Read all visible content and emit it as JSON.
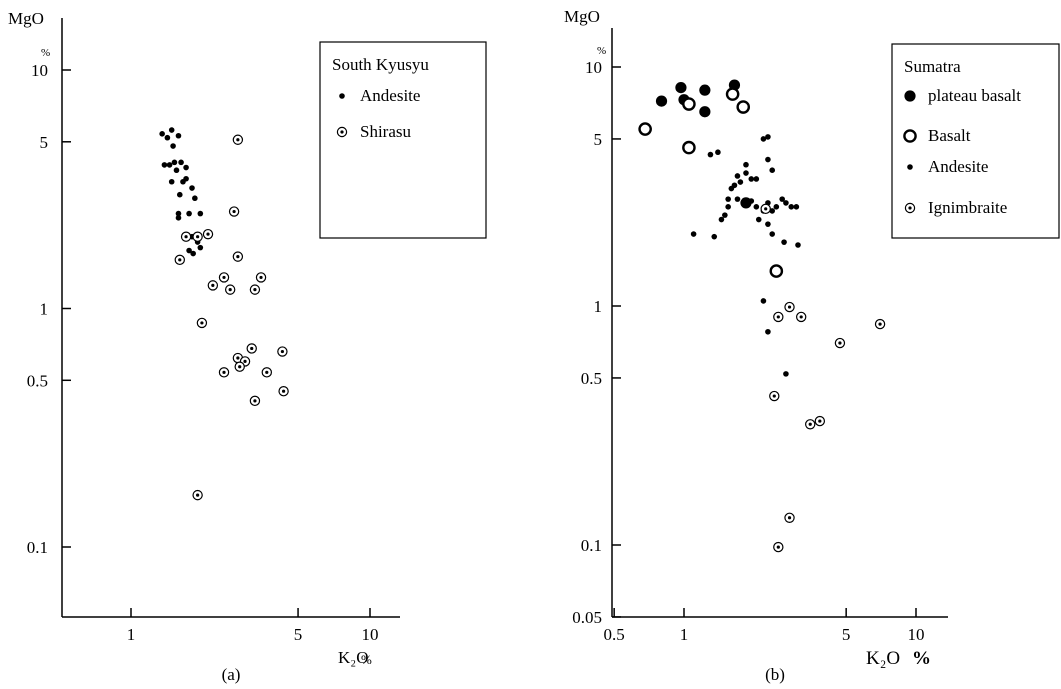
{
  "chart_data": [
    {
      "type": "scatter",
      "panel_label": "(a)",
      "y_axis_label": "MgO",
      "y_unit_label": "%",
      "x_axis_label": "K₂O",
      "x_unit_label": "%",
      "x_scale": "log",
      "y_scale": "log",
      "xlim": [
        0.5,
        15
      ],
      "ylim": [
        0.05,
        20
      ],
      "x_ticks": [
        {
          "v": 1,
          "label": "1"
        },
        {
          "v": 5,
          "label": "5"
        },
        {
          "v": 10,
          "label": "10"
        }
      ],
      "y_ticks": [
        {
          "v": 0.1,
          "label": "0.1"
        },
        {
          "v": 0.5,
          "label": "0.5"
        },
        {
          "v": 1,
          "label": "1"
        },
        {
          "v": 5,
          "label": "5"
        },
        {
          "v": 10,
          "label": "10"
        }
      ],
      "grid": false,
      "legend_position": "top-right",
      "legend_title": "South Kyusyu",
      "series": [
        {
          "name": "Andesite",
          "marker": "small-dot",
          "points": [
            [
              1.35,
              5.4
            ],
            [
              1.42,
              5.2
            ],
            [
              1.48,
              5.6
            ],
            [
              1.58,
              5.3
            ],
            [
              1.5,
              4.8
            ],
            [
              1.38,
              4.0
            ],
            [
              1.45,
              4.0
            ],
            [
              1.52,
              4.1
            ],
            [
              1.55,
              3.8
            ],
            [
              1.62,
              4.1
            ],
            [
              1.7,
              3.9
            ],
            [
              1.48,
              3.4
            ],
            [
              1.65,
              3.4
            ],
            [
              1.7,
              3.5
            ],
            [
              1.8,
              3.2
            ],
            [
              1.6,
              3.0
            ],
            [
              1.85,
              2.9
            ],
            [
              1.58,
              2.5
            ],
            [
              1.75,
              2.5
            ],
            [
              1.95,
              2.5
            ],
            [
              1.58,
              2.4
            ],
            [
              1.8,
              2.0
            ],
            [
              1.9,
              1.9
            ],
            [
              1.75,
              1.75
            ],
            [
              1.82,
              1.7
            ],
            [
              1.95,
              1.8
            ]
          ]
        },
        {
          "name": "Shirasu",
          "marker": "dotted-circle",
          "points": [
            [
              2.8,
              5.1
            ],
            [
              2.7,
              2.55
            ],
            [
              1.7,
              2.0
            ],
            [
              1.9,
              2.0
            ],
            [
              2.1,
              2.05
            ],
            [
              1.6,
              1.6
            ],
            [
              2.8,
              1.65
            ],
            [
              2.45,
              1.35
            ],
            [
              3.5,
              1.35
            ],
            [
              2.2,
              1.25
            ],
            [
              2.6,
              1.2
            ],
            [
              3.3,
              1.2
            ],
            [
              1.98,
              0.87
            ],
            [
              3.2,
              0.68
            ],
            [
              4.3,
              0.66
            ],
            [
              2.8,
              0.62
            ],
            [
              3.0,
              0.6
            ],
            [
              2.85,
              0.57
            ],
            [
              2.45,
              0.54
            ],
            [
              3.7,
              0.54
            ],
            [
              4.35,
              0.45
            ],
            [
              3.3,
              0.41
            ],
            [
              1.9,
              0.165
            ]
          ]
        }
      ]
    },
    {
      "type": "scatter",
      "panel_label": "(b)",
      "y_axis_label": "MgO",
      "y_unit_label": "%",
      "x_axis_label": "K₂O",
      "x_unit_label": "%",
      "x_scale": "log",
      "y_scale": "log",
      "xlim": [
        0.5,
        14
      ],
      "ylim": [
        0.05,
        16
      ],
      "x_ticks": [
        {
          "v": 0.5,
          "label": "0.5"
        },
        {
          "v": 1,
          "label": "1"
        },
        {
          "v": 5,
          "label": "5"
        },
        {
          "v": 10,
          "label": "10"
        }
      ],
      "y_ticks": [
        {
          "v": 0.05,
          "label": "0.05"
        },
        {
          "v": 0.1,
          "label": "0.1"
        },
        {
          "v": 0.5,
          "label": "0.5"
        },
        {
          "v": 1,
          "label": "1"
        },
        {
          "v": 5,
          "label": "5"
        },
        {
          "v": 10,
          "label": "10"
        }
      ],
      "grid": false,
      "legend_position": "top-right",
      "legend_title": "Sumatra",
      "series": [
        {
          "name": "plateau basalt",
          "marker": "large-filled-circle",
          "points": [
            [
              0.8,
              7.2
            ],
            [
              0.97,
              8.2
            ],
            [
              1.0,
              7.3
            ],
            [
              1.23,
              8.0
            ],
            [
              1.23,
              6.5
            ],
            [
              1.65,
              8.4
            ],
            [
              1.85,
              2.7
            ]
          ]
        },
        {
          "name": "Basalt",
          "marker": "large-open-circle",
          "points": [
            [
              0.68,
              5.5
            ],
            [
              1.05,
              7.0
            ],
            [
              1.05,
              4.6
            ],
            [
              1.62,
              7.7
            ],
            [
              1.8,
              6.8
            ],
            [
              2.5,
              1.4
            ]
          ]
        },
        {
          "name": "Andesite",
          "marker": "small-dot",
          "points": [
            [
              1.3,
              4.3
            ],
            [
              1.4,
              4.4
            ],
            [
              2.2,
              5.0
            ],
            [
              2.3,
              5.1
            ],
            [
              2.3,
              4.1
            ],
            [
              2.4,
              3.7
            ],
            [
              1.85,
              3.9
            ],
            [
              1.85,
              3.6
            ],
            [
              1.95,
              3.4
            ],
            [
              2.05,
              3.4
            ],
            [
              1.7,
              3.5
            ],
            [
              1.75,
              3.3
            ],
            [
              1.65,
              3.2
            ],
            [
              1.6,
              3.1
            ],
            [
              1.55,
              2.8
            ],
            [
              1.55,
              2.6
            ],
            [
              1.5,
              2.4
            ],
            [
              1.45,
              2.3
            ],
            [
              1.7,
              2.8
            ],
            [
              1.95,
              2.75
            ],
            [
              2.05,
              2.6
            ],
            [
              2.2,
              2.5
            ],
            [
              2.4,
              2.5
            ],
            [
              2.3,
              2.7
            ],
            [
              2.5,
              2.6
            ],
            [
              2.65,
              2.8
            ],
            [
              2.75,
              2.7
            ],
            [
              2.9,
              2.6
            ],
            [
              3.05,
              2.6
            ],
            [
              2.1,
              2.3
            ],
            [
              2.3,
              2.2
            ],
            [
              1.1,
              2.0
            ],
            [
              1.35,
              1.95
            ],
            [
              2.4,
              2.0
            ],
            [
              2.7,
              1.85
            ],
            [
              3.1,
              1.8
            ],
            [
              2.2,
              1.05
            ],
            [
              2.3,
              0.78
            ],
            [
              2.75,
              0.52
            ]
          ]
        },
        {
          "name": "Ignimbraite",
          "marker": "dotted-circle",
          "points": [
            [
              2.25,
              2.55
            ],
            [
              2.85,
              0.99
            ],
            [
              2.55,
              0.9
            ],
            [
              3.2,
              0.9
            ],
            [
              4.7,
              0.7
            ],
            [
              7.0,
              0.84
            ],
            [
              2.45,
              0.42
            ],
            [
              3.5,
              0.32
            ],
            [
              3.85,
              0.33
            ],
            [
              2.85,
              0.13
            ],
            [
              2.55,
              0.098
            ]
          ]
        }
      ]
    }
  ]
}
